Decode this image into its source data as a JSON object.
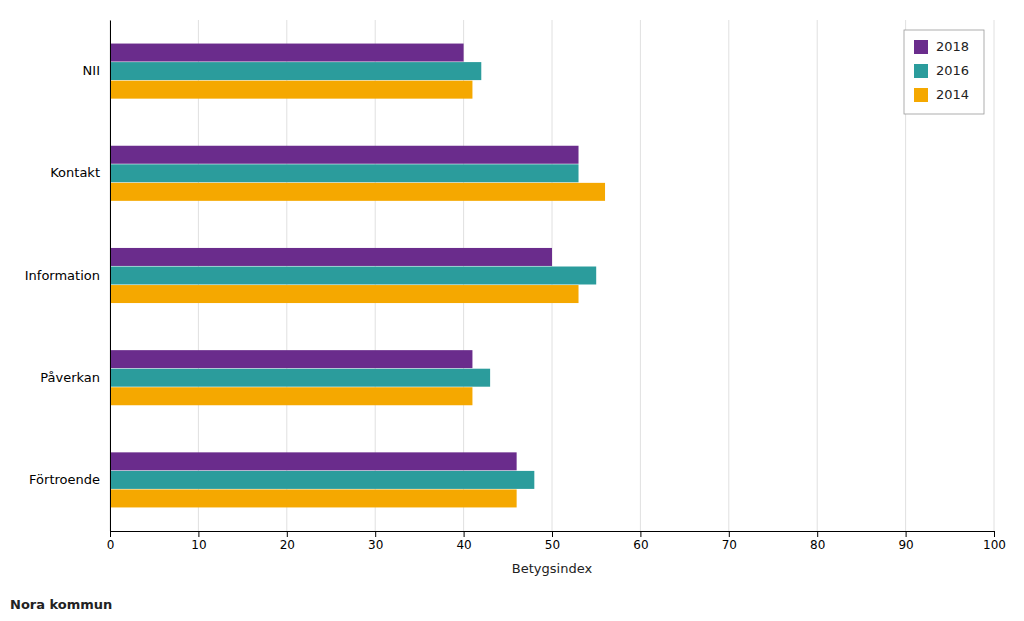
{
  "chart_data": {
    "type": "bar",
    "orientation": "horizontal",
    "categories": [
      "Förtroende",
      "Påverkan",
      "Information",
      "Kontakt",
      "NII"
    ],
    "series": [
      {
        "name": "2018",
        "color": "#6a2c8c",
        "values": [
          46,
          41,
          50,
          53,
          40
        ]
      },
      {
        "name": "2016",
        "color": "#2b9c9c",
        "values": [
          48,
          43,
          55,
          53,
          42
        ]
      },
      {
        "name": "2014",
        "color": "#f5a800",
        "values": [
          46,
          41,
          53,
          56,
          41
        ]
      }
    ],
    "xlabel": "Betygsindex",
    "xlim": [
      0,
      100
    ],
    "xticks": [
      0,
      10,
      20,
      30,
      40,
      50,
      60,
      70,
      80,
      90,
      100
    ],
    "grid": true,
    "legend": "upper right",
    "footer": "Nora kommun"
  }
}
